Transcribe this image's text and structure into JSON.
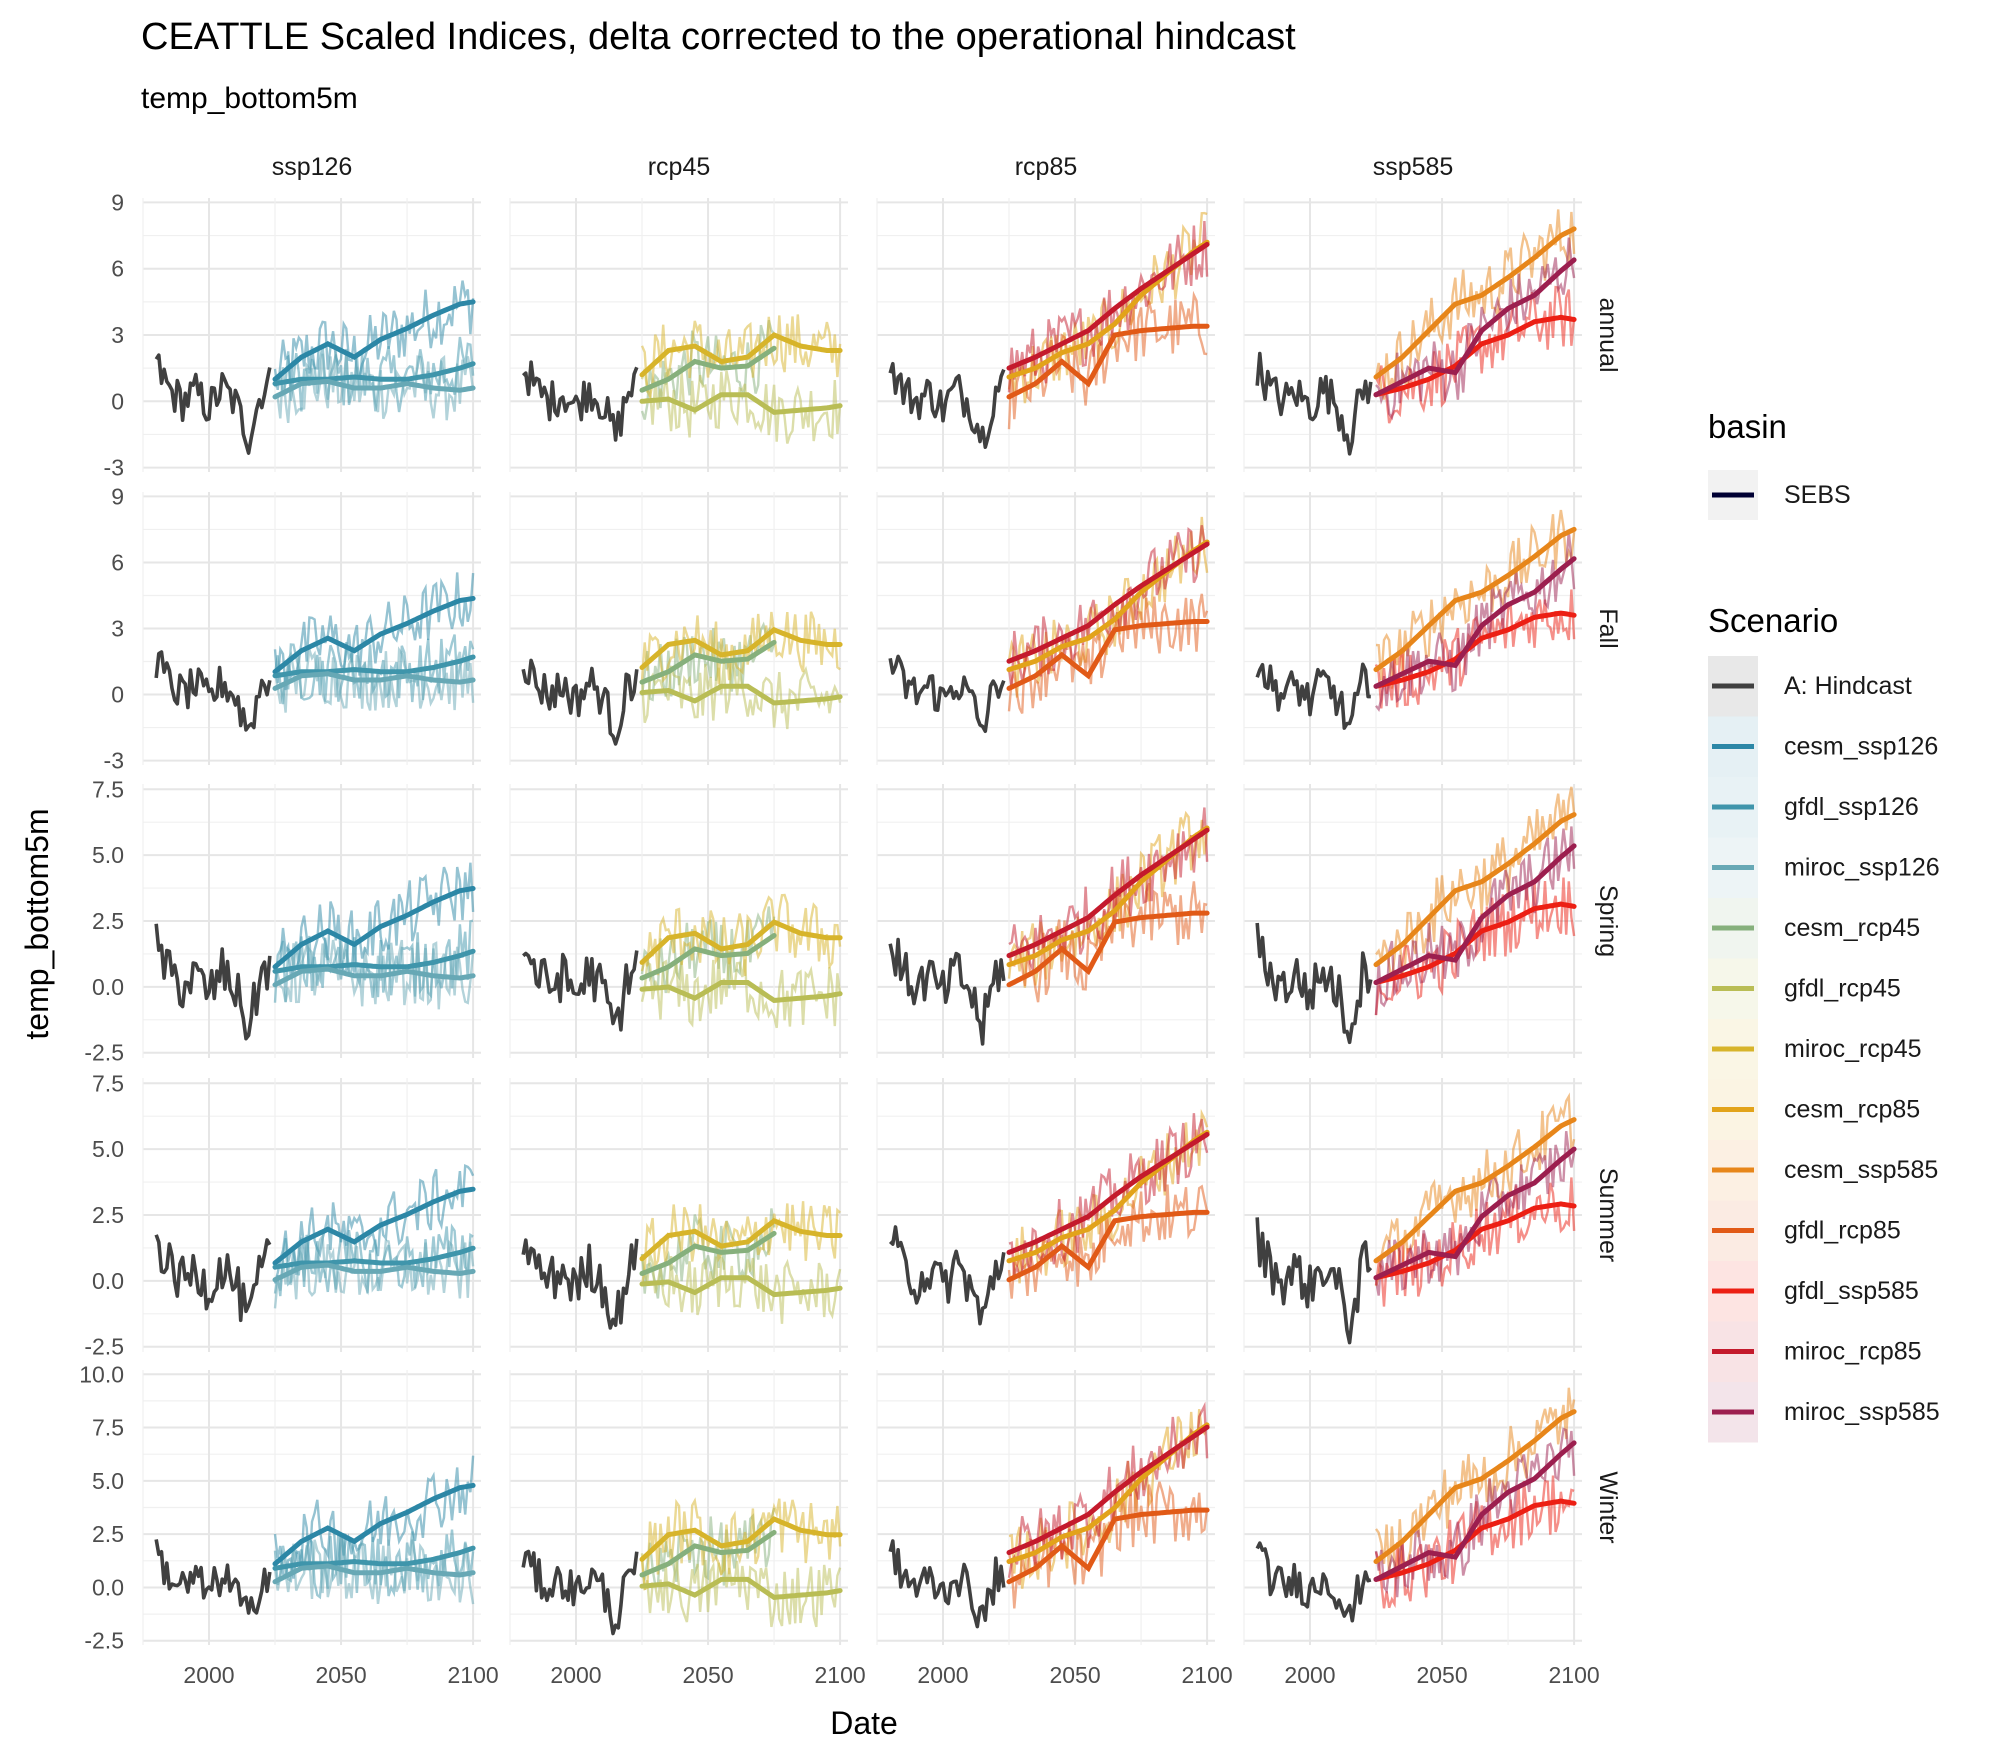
{
  "chart_data": {
    "type": "line",
    "title": "CEATTLE Scaled Indices, delta corrected to the operational hindcast",
    "subtitle": "temp_bottom5m",
    "xlabel": "Date",
    "ylabel": "temp_bottom5m",
    "facet_columns": [
      "ssp126",
      "rcp45",
      "rcp85",
      "ssp585"
    ],
    "facet_rows": [
      "annual",
      "Fall",
      "Spring",
      "Summer",
      "Winter"
    ],
    "x_ticks": [
      "2000",
      "2050",
      "2100"
    ],
    "xlim": [
      1975,
      2103
    ],
    "rows": [
      {
        "name": "annual",
        "ylim": [
          -3.2,
          9.2
        ],
        "ticks": [
          -3,
          0,
          3,
          6,
          9
        ],
        "tick_labels": [
          "-3",
          "0",
          "3",
          "6",
          "9"
        ]
      },
      {
        "name": "Fall",
        "ylim": [
          -3.2,
          9.2
        ],
        "ticks": [
          -3,
          0,
          3,
          6,
          9
        ],
        "tick_labels": [
          "-3",
          "0",
          "3",
          "6",
          "9"
        ]
      },
      {
        "name": "Spring",
        "ylim": [
          -2.7,
          7.7
        ],
        "ticks": [
          -2.5,
          0,
          2.5,
          5,
          7.5
        ],
        "tick_labels": [
          "-2.5",
          "0.0",
          "2.5",
          "5.0",
          "7.5"
        ]
      },
      {
        "name": "Summer",
        "ylim": [
          -2.7,
          7.7
        ],
        "ticks": [
          -2.5,
          0,
          2.5,
          5,
          7.5
        ],
        "tick_labels": [
          "-2.5",
          "0.0",
          "2.5",
          "5.0",
          "7.5"
        ]
      },
      {
        "name": "Winter",
        "ylim": [
          -2.7,
          10.2
        ],
        "ticks": [
          -2.5,
          0,
          2.5,
          5,
          7.5,
          10
        ],
        "tick_labels": [
          "-2.5",
          "0.0",
          "2.5",
          "5.0",
          "7.5",
          "10.0"
        ]
      }
    ],
    "legend_basin": {
      "title": "basin",
      "entries": [
        {
          "label": "SEBS",
          "color": "#000033"
        }
      ]
    },
    "legend_scenario": {
      "title": "Scenario",
      "entries": [
        {
          "label": "A: Hindcast",
          "color": "#404040"
        },
        {
          "label": "cesm_ssp126",
          "color": "#2c87a6"
        },
        {
          "label": "gfdl_ssp126",
          "color": "#3f95ab"
        },
        {
          "label": "miroc_ssp126",
          "color": "#67a8b5"
        },
        {
          "label": "cesm_rcp45",
          "color": "#86b07c"
        },
        {
          "label": "gfdl_rcp45",
          "color": "#b9bd55"
        },
        {
          "label": "miroc_rcp45",
          "color": "#d7b42a"
        },
        {
          "label": "cesm_rcp85",
          "color": "#e2a31a"
        },
        {
          "label": "cesm_ssp585",
          "color": "#e7861a"
        },
        {
          "label": "gfdl_rcp85",
          "color": "#e15a17"
        },
        {
          "label": "gfdl_ssp585",
          "color": "#ec1f14"
        },
        {
          "label": "miroc_rcp85",
          "color": "#c41a2c"
        },
        {
          "label": "miroc_ssp585",
          "color": "#9c1f4f"
        }
      ]
    },
    "hindcast": {
      "name": "A: Hindcast",
      "color": "#404040",
      "x": [
        1980,
        1985,
        1990,
        1995,
        2000,
        2005,
        2010,
        2015,
        2020,
        2023
      ],
      "y": [
        1.6,
        0.5,
        0.0,
        0.4,
        -0.3,
        0.6,
        -0.1,
        -1.6,
        0.5,
        0.8
      ]
    },
    "smooth_projections": {
      "x": [
        2025,
        2035,
        2045,
        2055,
        2065,
        2075,
        2085,
        2095,
        2100
      ],
      "ssp126": [
        {
          "name": "cesm_ssp126",
          "y": [
            1.0,
            2.0,
            2.6,
            2.0,
            2.8,
            3.3,
            3.9,
            4.4,
            4.5
          ]
        },
        {
          "name": "gfdl_ssp126",
          "y": [
            0.8,
            1.0,
            1.0,
            1.1,
            1.0,
            1.0,
            1.2,
            1.5,
            1.7
          ]
        },
        {
          "name": "miroc_ssp126",
          "y": [
            0.2,
            0.8,
            0.9,
            0.6,
            0.6,
            0.8,
            0.6,
            0.5,
            0.6
          ]
        }
      ],
      "rcp45": [
        {
          "name": "cesm_rcp45",
          "y": [
            0.5,
            1.0,
            1.8,
            1.5,
            1.6,
            2.4,
            null,
            null,
            null
          ]
        },
        {
          "name": "gfdl_rcp45",
          "y": [
            0.0,
            0.1,
            -0.4,
            0.3,
            0.3,
            -0.5,
            -0.4,
            -0.3,
            -0.2
          ]
        },
        {
          "name": "miroc_rcp45",
          "y": [
            1.2,
            2.3,
            2.5,
            1.8,
            2.0,
            3.0,
            2.5,
            2.3,
            2.3
          ]
        }
      ],
      "rcp85": [
        {
          "name": "cesm_rcp85",
          "y": [
            1.1,
            1.5,
            2.2,
            2.6,
            3.5,
            4.8,
            5.8,
            6.8,
            7.2
          ]
        },
        {
          "name": "gfdl_rcp85",
          "y": [
            0.2,
            0.8,
            1.8,
            0.8,
            3.0,
            3.2,
            3.3,
            3.4,
            3.4
          ]
        },
        {
          "name": "miroc_rcp85",
          "y": [
            1.5,
            2.0,
            2.6,
            3.2,
            4.2,
            5.1,
            5.9,
            6.7,
            7.1
          ]
        }
      ],
      "ssp585": [
        {
          "name": "cesm_ssp585",
          "y": [
            1.1,
            2.0,
            3.2,
            4.4,
            4.8,
            5.6,
            6.5,
            7.5,
            7.8
          ]
        },
        {
          "name": "gfdl_ssp585",
          "y": [
            0.3,
            0.6,
            1.0,
            1.6,
            2.6,
            3.0,
            3.6,
            3.8,
            3.7
          ]
        },
        {
          "name": "miroc_ssp585",
          "y": [
            0.3,
            0.9,
            1.5,
            1.3,
            3.2,
            4.2,
            4.8,
            5.9,
            6.4
          ]
        }
      ]
    },
    "row_offsets": {
      "annual": 0.0,
      "Fall": 0.3,
      "Spring": -0.3,
      "Summer": -0.4,
      "Winter": 0.2
    },
    "row_scales": {
      "annual": 1.0,
      "Fall": 0.95,
      "Spring": 0.85,
      "Summer": 0.8,
      "Winter": 1.05
    }
  }
}
